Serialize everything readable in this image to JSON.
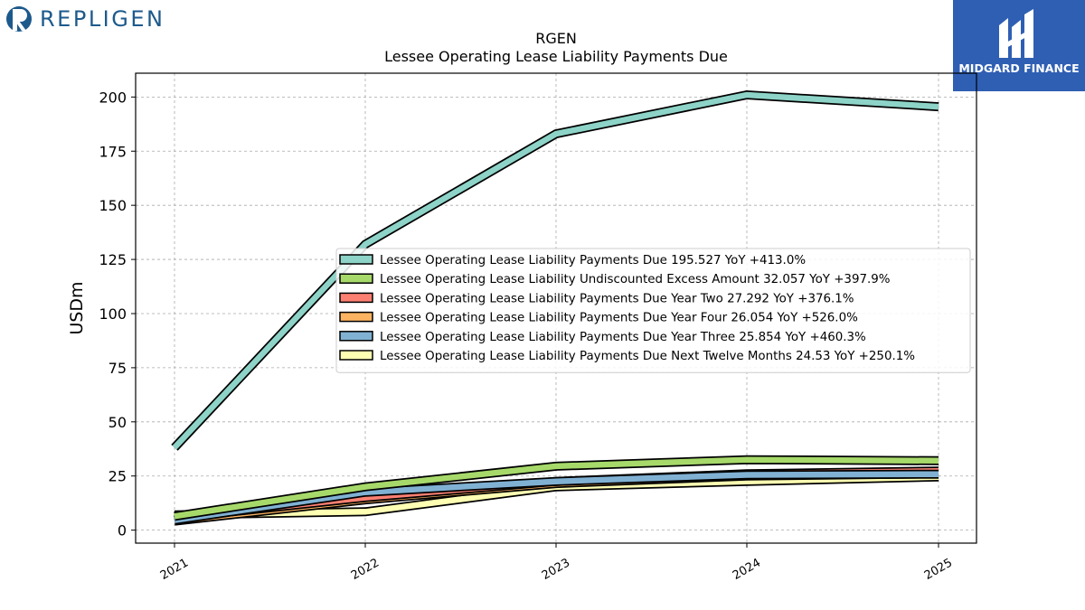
{
  "brand": {
    "left_logo_text": "REPLIGEN",
    "right_logo_text": "MIDGARD FINANCE"
  },
  "chart_data": {
    "type": "area",
    "title": "RGEN",
    "subtitle": "Lessee Operating Lease Liability Payments Due",
    "ylabel": "USDm",
    "xlabel": "",
    "categories": [
      "2021",
      "2022",
      "2023",
      "2024",
      "2025"
    ],
    "yticks": [
      0,
      25,
      50,
      75,
      100,
      125,
      150,
      175,
      200
    ],
    "ylim": [
      -6,
      211
    ],
    "grid": true,
    "legend_position": "center-right",
    "series": [
      {
        "name": "Lessee Operating Lease Liability Payments Due",
        "legend": "Lessee Operating Lease Liability Payments Due  195.527 YoY +413.0%",
        "color": "#8dd3c7",
        "values": [
          38.1,
          132,
          183,
          201,
          195.527
        ]
      },
      {
        "name": "Lessee Operating Lease Liability Undiscounted Excess Amount",
        "legend": "Lessee Operating Lease Liability Undiscounted Excess Amount  32.057 YoY +397.9%",
        "color": "#a6d96a",
        "values": [
          6.4,
          20,
          29.5,
          32.5,
          32.057
        ]
      },
      {
        "name": "Lessee Operating Lease Liability Payments Due Year Two",
        "legend": "Lessee Operating Lease Liability Payments Due Year Two  27.292 YoY +376.1%",
        "color": "#fb8072",
        "values": [
          5.7,
          15,
          22.5,
          26,
          27.292
        ]
      },
      {
        "name": "Lessee Operating Lease Liability Payments Due Year Four",
        "legend": "Lessee Operating Lease Liability Payments Due Year Four  26.054 YoY +526.0%",
        "color": "#fdb462",
        "values": [
          4.2,
          14,
          21.5,
          25,
          26.054
        ]
      },
      {
        "name": "Lessee Operating Lease Liability Payments Due Year Three",
        "legend": "Lessee Operating Lease Liability Payments Due Year Three  25.854 YoY +460.3%",
        "color": "#80b1d3",
        "values": [
          4.6,
          17.5,
          22.5,
          25.5,
          25.854
        ]
      },
      {
        "name": "Lessee Operating Lease Liability Payments Due Next Twelve Months",
        "legend": "Lessee Operating Lease Liability Payments Due Next Twelve Months  24.53 YoY +250.1%",
        "color": "#ffffb3",
        "values": [
          7.0,
          8.5,
          20,
          22.5,
          24.53
        ]
      }
    ]
  }
}
